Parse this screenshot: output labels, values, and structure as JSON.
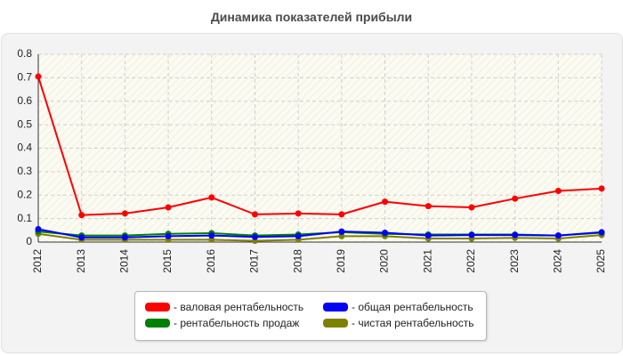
{
  "chart_data": {
    "type": "line",
    "title": "Динамика показателей прибыли",
    "xlabel": "",
    "ylabel": "",
    "x": [
      "2012",
      "2013",
      "2014",
      "2015",
      "2016",
      "2017",
      "2018",
      "2019",
      "2020",
      "2021",
      "2022",
      "2023",
      "2024",
      "2025"
    ],
    "ylim": [
      0,
      0.8
    ],
    "yticks": [
      "0",
      "0.1",
      "0.2",
      "0.3",
      "0.4",
      "0.5",
      "0.6",
      "0.7",
      "0.8"
    ],
    "grid": true,
    "legend_position": "bottom",
    "series": [
      {
        "name": "- валовая рентабельность",
        "color": "#ff0000",
        "values": [
          0.705,
          0.115,
          0.122,
          0.148,
          0.19,
          0.118,
          0.122,
          0.118,
          0.172,
          0.153,
          0.148,
          0.185,
          0.218,
          0.228
        ]
      },
      {
        "name": "- рентабельность продаж",
        "color": "#008000",
        "values": [
          0.045,
          0.028,
          0.028,
          0.035,
          0.038,
          0.028,
          0.032,
          0.042,
          0.035,
          0.032,
          0.032,
          0.032,
          0.028,
          0.04
        ]
      },
      {
        "name": "- общая рентабельность",
        "color": "#0000ff",
        "values": [
          0.055,
          0.02,
          0.02,
          0.025,
          0.028,
          0.022,
          0.025,
          0.045,
          0.04,
          0.028,
          0.03,
          0.03,
          0.028,
          0.042
        ]
      },
      {
        "name": "- чистая рентабельность",
        "color": "#808000",
        "values": [
          0.035,
          0.01,
          0.01,
          0.01,
          0.01,
          0.005,
          0.01,
          0.025,
          0.025,
          0.015,
          0.015,
          0.018,
          0.015,
          0.03
        ]
      }
    ],
    "legend": [
      {
        "label": "- валовая рентабельность",
        "color": "#ff0000"
      },
      {
        "label": "- общая рентабельность",
        "color": "#0000ff"
      },
      {
        "label": "- рентабельность продаж",
        "color": "#008000"
      },
      {
        "label": "- чистая рентабельность",
        "color": "#808000"
      }
    ]
  }
}
